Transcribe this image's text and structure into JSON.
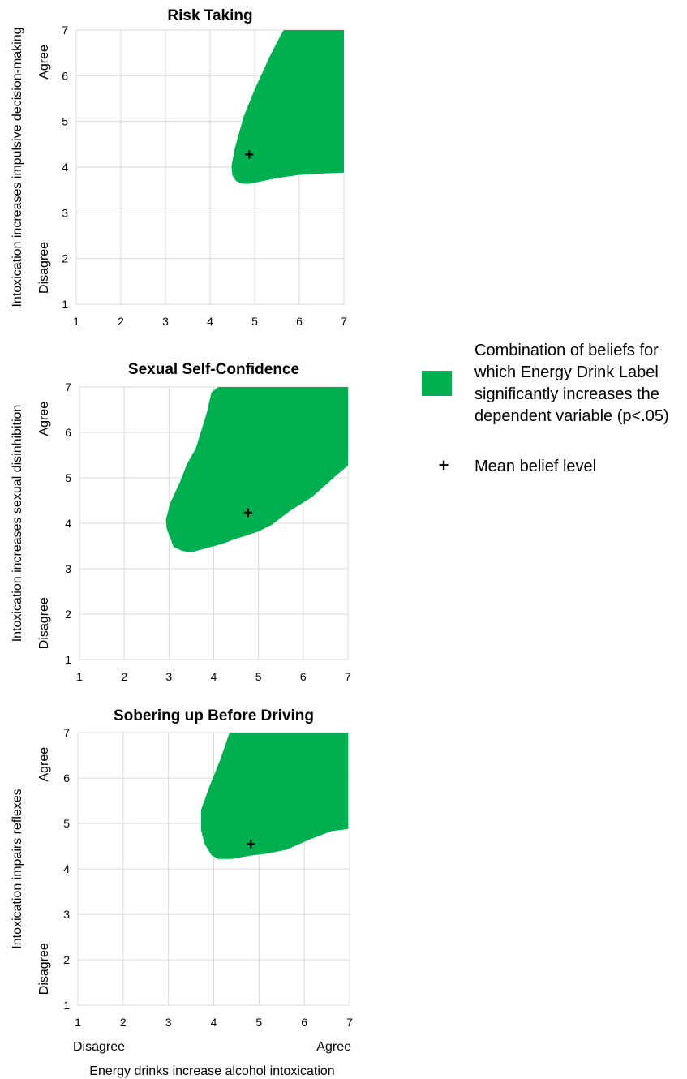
{
  "chart_data": [
    {
      "type": "area",
      "title": "Risk Taking",
      "ylabel": "Intoxication increases impulsive decision-making",
      "xlim": [
        1,
        7
      ],
      "ylim": [
        1,
        7
      ],
      "x_ticks": [
        "1",
        "2",
        "3",
        "4",
        "5",
        "6",
        "7"
      ],
      "y_ticks": [
        "1",
        "2",
        "3",
        "4",
        "5",
        "6",
        "7"
      ],
      "y_low_label": "Disagree",
      "y_high_label": "Agree",
      "region": [
        [
          5.65,
          7.0
        ],
        [
          7.0,
          7.0
        ],
        [
          7.0,
          3.88
        ],
        [
          6.5,
          3.86
        ],
        [
          6.0,
          3.83
        ],
        [
          5.5,
          3.76
        ],
        [
          5.0,
          3.66
        ],
        [
          4.85,
          3.63
        ],
        [
          4.7,
          3.64
        ],
        [
          4.58,
          3.7
        ],
        [
          4.5,
          3.82
        ],
        [
          4.48,
          4.02
        ],
        [
          4.55,
          4.4
        ],
        [
          4.75,
          5.1
        ],
        [
          5.0,
          5.7
        ],
        [
          5.35,
          6.45
        ],
        [
          5.58,
          6.88
        ],
        [
          5.65,
          7.0
        ]
      ],
      "mean": [
        4.88,
        4.28
      ]
    },
    {
      "type": "area",
      "title": "Sexual Self-Confidence",
      "ylabel": "Intoxication increases sexual disinhibition",
      "xlim": [
        1,
        7
      ],
      "ylim": [
        1,
        7
      ],
      "x_ticks": [
        "1",
        "2",
        "3",
        "4",
        "5",
        "6",
        "7"
      ],
      "y_ticks": [
        "1",
        "2",
        "3",
        "4",
        "5",
        "6",
        "7"
      ],
      "y_low_label": "Disagree",
      "y_high_label": "Agree",
      "region": [
        [
          4.1,
          7.0
        ],
        [
          7.0,
          7.0
        ],
        [
          7.0,
          5.27
        ],
        [
          6.7,
          5.02
        ],
        [
          6.2,
          4.58
        ],
        [
          5.7,
          4.27
        ],
        [
          5.3,
          3.97
        ],
        [
          5.0,
          3.82
        ],
        [
          4.7,
          3.72
        ],
        [
          4.5,
          3.66
        ],
        [
          4.2,
          3.55
        ],
        [
          3.95,
          3.48
        ],
        [
          3.5,
          3.36
        ],
        [
          3.3,
          3.39
        ],
        [
          3.1,
          3.48
        ],
        [
          2.95,
          3.88
        ],
        [
          2.93,
          4.08
        ],
        [
          3.03,
          4.45
        ],
        [
          3.25,
          4.92
        ],
        [
          3.4,
          5.3
        ],
        [
          3.6,
          5.65
        ],
        [
          3.85,
          6.45
        ],
        [
          3.95,
          6.88
        ],
        [
          4.1,
          7.0
        ]
      ],
      "mean": [
        4.77,
        4.24
      ]
    },
    {
      "type": "area",
      "title": "Sobering up Before Driving",
      "ylabel": "Intoxication impairs reflexes",
      "xlabel": "Energy drinks increase alcohol intoxication",
      "xlim": [
        1,
        7
      ],
      "ylim": [
        1,
        7
      ],
      "x_ticks": [
        "1",
        "2",
        "3",
        "4",
        "5",
        "6",
        "7"
      ],
      "y_ticks": [
        "1",
        "2",
        "3",
        "4",
        "5",
        "6",
        "7"
      ],
      "x_low_label": "Disagree",
      "x_high_label": "Agree",
      "y_low_label": "Disagree",
      "y_high_label": "Agree",
      "region": [
        [
          4.35,
          7.0
        ],
        [
          6.97,
          7.0
        ],
        [
          6.97,
          4.88
        ],
        [
          6.6,
          4.83
        ],
        [
          6.1,
          4.64
        ],
        [
          5.6,
          4.42
        ],
        [
          5.2,
          4.34
        ],
        [
          4.8,
          4.29
        ],
        [
          4.4,
          4.22
        ],
        [
          4.1,
          4.22
        ],
        [
          3.95,
          4.3
        ],
        [
          3.8,
          4.55
        ],
        [
          3.72,
          4.85
        ],
        [
          3.72,
          5.3
        ],
        [
          3.9,
          5.8
        ],
        [
          4.15,
          6.42
        ],
        [
          4.35,
          7.0
        ]
      ],
      "mean": [
        4.82,
        4.55
      ]
    }
  ],
  "legend": {
    "fill_text": [
      "Combination of beliefs for",
      "which Energy Drink Label",
      "significantly increases the",
      "dependent variable (p<.05)"
    ],
    "mean_text": "Mean belief level",
    "mean_symbol": "+",
    "fill_color": "#00b050"
  }
}
